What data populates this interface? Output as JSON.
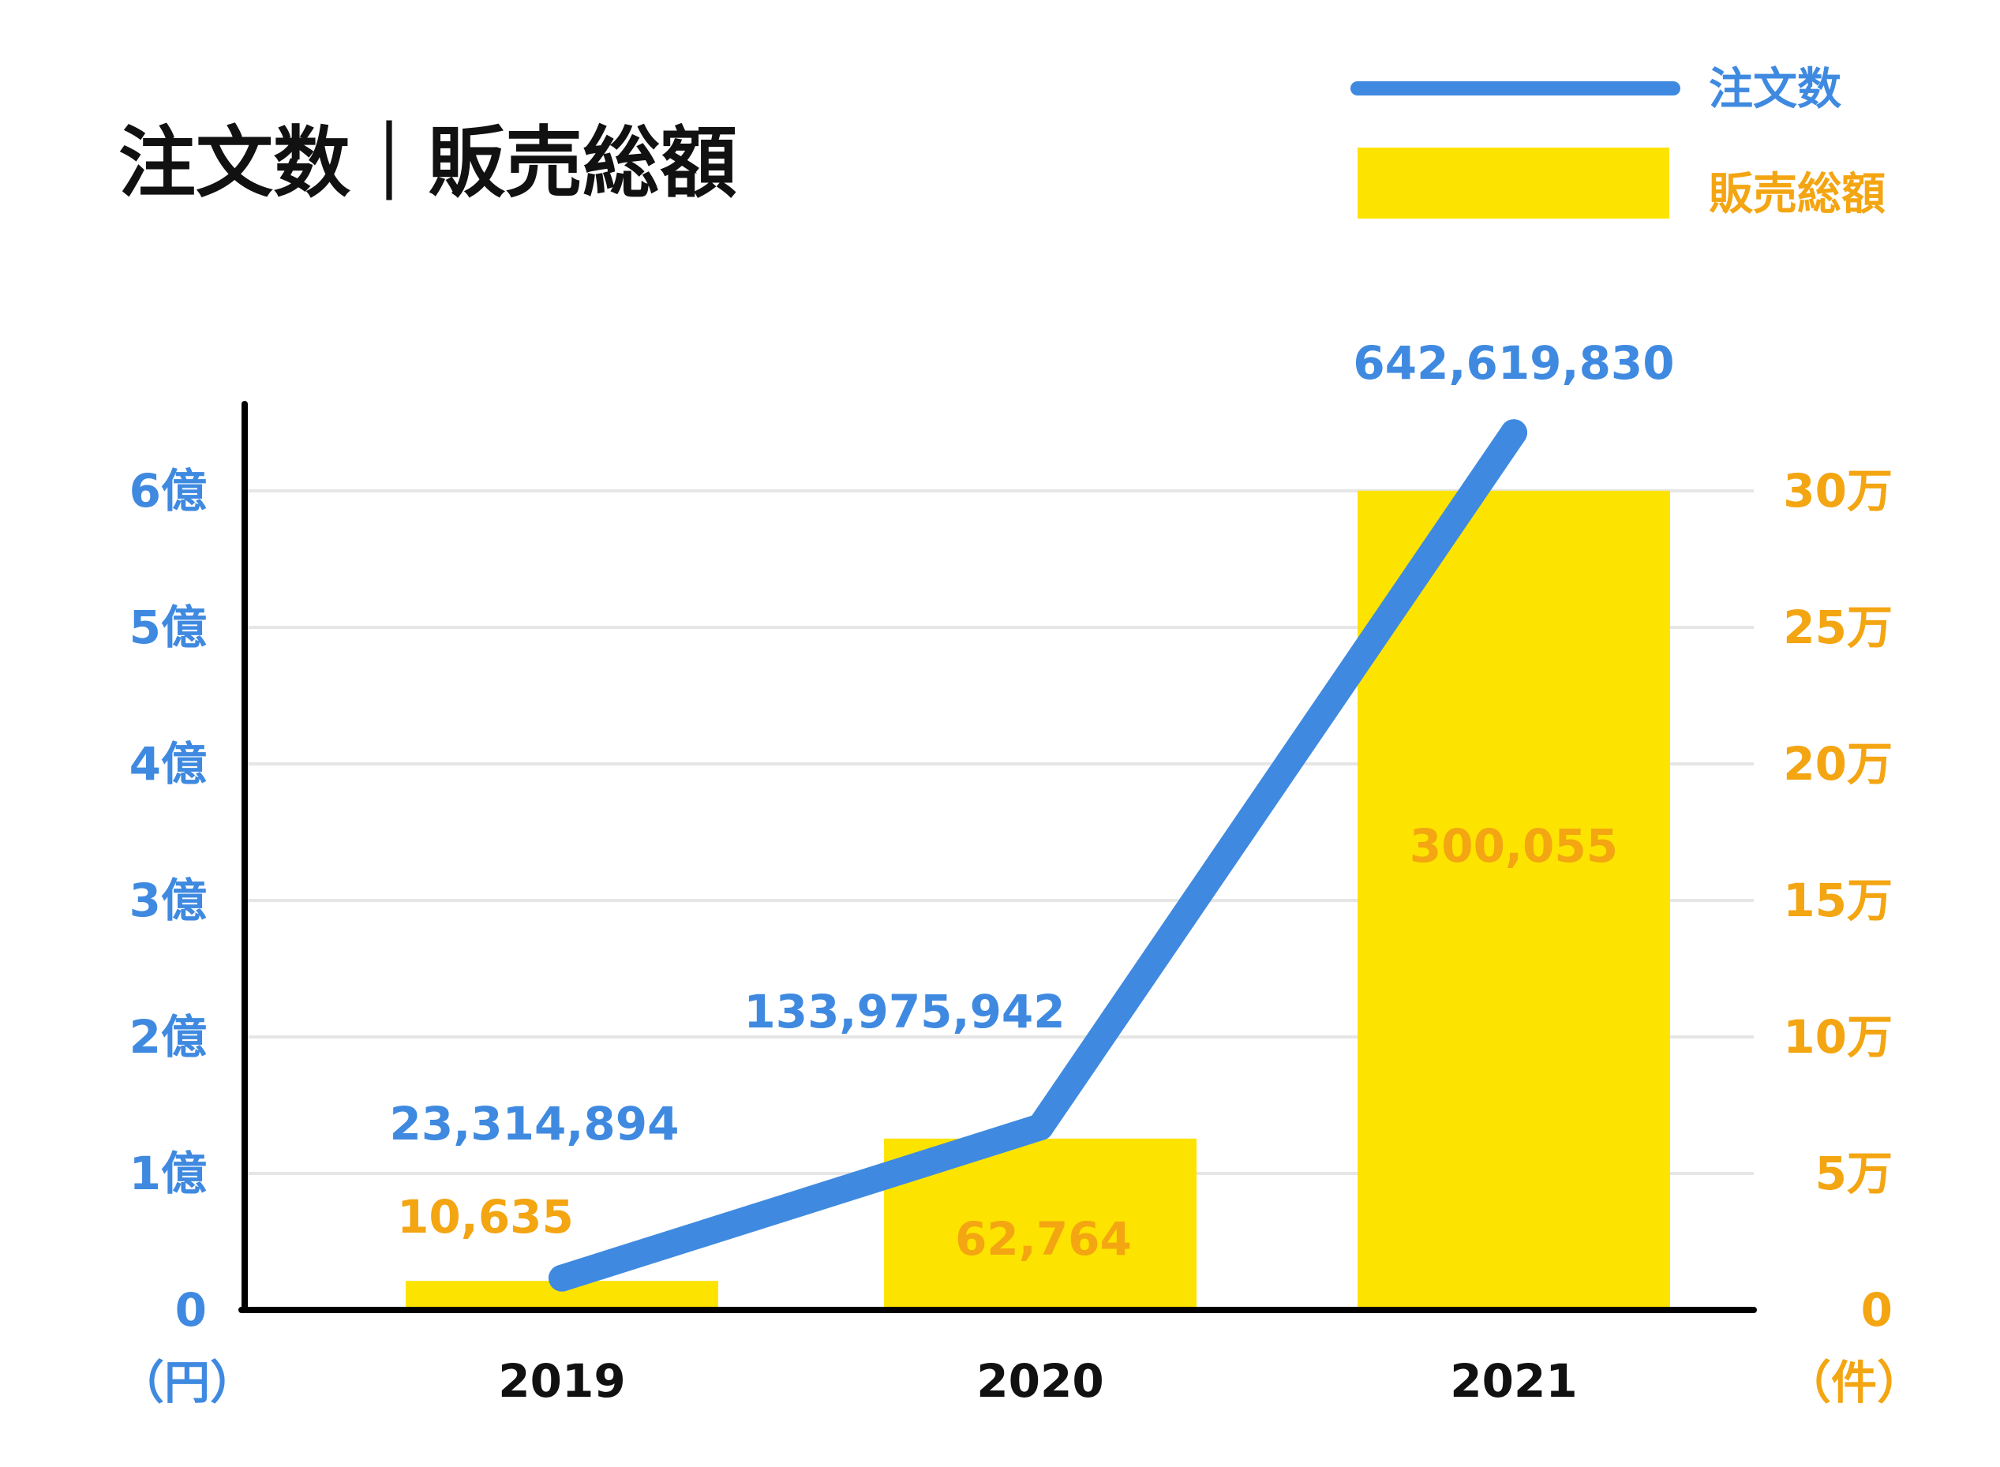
{
  "title": "注文数｜販売総額",
  "colors": {
    "line": "#3f8ae0",
    "bar": "#fde300",
    "left_axis": "#3f8ae0",
    "right_axis": "#f3a512",
    "text": "#111111",
    "grid": "#e6e6e6"
  },
  "chart_data": {
    "type": "bar",
    "categories": [
      "2019",
      "2020",
      "2021"
    ],
    "series": [
      {
        "name": "注文数",
        "type": "line",
        "axis": "left",
        "values": [
          23314894,
          133975942,
          642619830
        ],
        "labels": [
          "23,314,894",
          "133,975,942",
          "642,619,830"
        ]
      },
      {
        "name": "販売総額",
        "type": "bar",
        "axis": "right",
        "values": [
          10635,
          62764,
          300055
        ],
        "labels": [
          "10,635",
          "62,764",
          "300,055"
        ]
      }
    ],
    "left_axis": {
      "unit": "（円）",
      "min": 0,
      "max": 600000000,
      "ticks": [
        0,
        100000000,
        200000000,
        300000000,
        400000000,
        500000000,
        600000000
      ],
      "tick_labels": [
        "0",
        "1億",
        "2億",
        "3億",
        "4億",
        "5億",
        "6億"
      ]
    },
    "right_axis": {
      "unit": "（件）",
      "min": 0,
      "max": 300000,
      "ticks": [
        0,
        50000,
        100000,
        150000,
        200000,
        250000,
        300000
      ],
      "tick_labels": [
        "0",
        "5万",
        "10万",
        "15万",
        "20万",
        "25万",
        "30万"
      ]
    },
    "grid": true,
    "legend_position": "top-right"
  }
}
